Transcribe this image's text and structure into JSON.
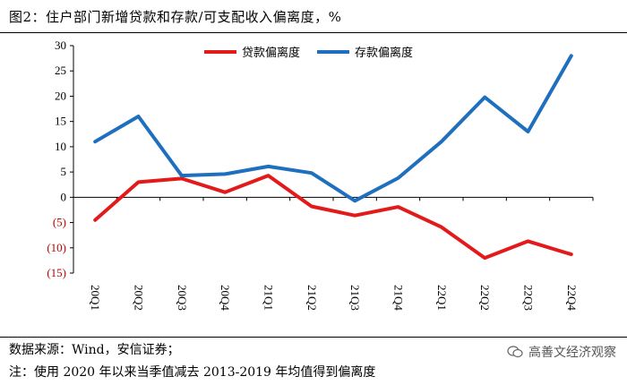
{
  "header": {
    "title": "图2：住户部门新增贷款和存款/可支配收入偏离度，%"
  },
  "footer": {
    "source": "数据来源：Wind，安信证券；",
    "note": "注：使用 2020 年以来当季值减去 2013-2019 年均值得到偏离度",
    "watermark": "高善文经济观察"
  },
  "chart_data": {
    "type": "line",
    "categories": [
      "20Q1",
      "20Q2",
      "20Q3",
      "20Q4",
      "21Q1",
      "21Q2",
      "21Q3",
      "21Q4",
      "22Q1",
      "22Q2",
      "22Q3",
      "22Q4"
    ],
    "ylim": [
      -15,
      30
    ],
    "yticks": [
      30,
      25,
      20,
      15,
      10,
      5,
      0,
      -5,
      -10,
      -15
    ],
    "ytick_labels": [
      "30",
      "25",
      "20",
      "15",
      "10",
      "5",
      "0",
      "(5)",
      "(10)",
      "(15)"
    ],
    "negative_tick_color": "#c00000",
    "legend_position": "top-center",
    "series": [
      {
        "name": "贷款偏离度",
        "color": "#e21a1a",
        "values": [
          -4.5,
          3.0,
          3.7,
          1.0,
          4.3,
          -1.8,
          -3.6,
          -1.9,
          -5.9,
          -12.0,
          -8.7,
          -11.3
        ]
      },
      {
        "name": "存款偏离度",
        "color": "#1f6fbf",
        "values": [
          11.0,
          16.0,
          4.3,
          4.6,
          6.1,
          4.8,
          -0.7,
          3.8,
          11.0,
          19.8,
          13.0,
          28.0
        ]
      }
    ]
  }
}
